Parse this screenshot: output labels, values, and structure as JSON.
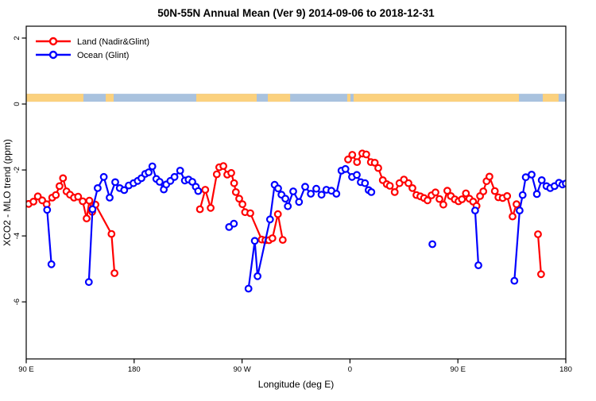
{
  "title": "50N-55N Annual Mean (Ver 9)   2014-09-06 to 2018-12-31",
  "legend": {
    "items": [
      {
        "label": "Land (Nadir&Glint)",
        "color": "#ff0000"
      },
      {
        "label": "Ocean (Glint)",
        "color": "#0000ff"
      }
    ]
  },
  "chart_data": {
    "type": "line",
    "title": "50N-55N Annual Mean (Ver 9)   2014-09-06 to 2018-12-31",
    "xlabel": "Longitude (deg E)",
    "ylabel": "XCO2 - MLO trend (ppm)",
    "xlim": [
      90,
      540
    ],
    "ylim": [
      -7.73,
      2.36
    ],
    "grid": false,
    "legend_position": "top-left",
    "x_ticks": [
      {
        "value": 90,
        "label": "90 E"
      },
      {
        "value": 180,
        "label": "180"
      },
      {
        "value": 270,
        "label": "90 W"
      },
      {
        "value": 360,
        "label": "0"
      },
      {
        "value": 450,
        "label": "90 E"
      },
      {
        "value": 540,
        "label": "180"
      }
    ],
    "y_ticks": [
      {
        "value": 2,
        "label": "2"
      },
      {
        "value": 0,
        "label": "0"
      },
      {
        "value": -2,
        "label": "-2"
      },
      {
        "value": -4,
        "label": "-4"
      },
      {
        "value": -6,
        "label": "-6"
      }
    ],
    "series": [
      {
        "name": "Land (Nadir&Glint)",
        "color": "#ff0000",
        "marker": "open-circle",
        "segments": [
          [
            [
              92,
              -3.03
            ],
            [
              96,
              -2.96
            ],
            [
              99.7,
              -2.8
            ],
            [
              103.3,
              -2.92
            ],
            [
              107,
              -3.04
            ],
            [
              111.7,
              -2.84
            ],
            [
              114.7,
              -2.76
            ],
            [
              117.8,
              -2.49
            ],
            [
              120.7,
              -2.25
            ],
            [
              123.6,
              -2.65
            ],
            [
              126.5,
              -2.75
            ],
            [
              129.8,
              -2.84
            ],
            [
              133.3,
              -2.81
            ],
            [
              137.1,
              -2.95
            ],
            [
              140.4,
              -3.47
            ],
            [
              142.7,
              -2.93
            ],
            [
              145,
              -3.27
            ],
            [
              147.7,
              -3.05
            ],
            [
              161.1,
              -3.94
            ],
            [
              163.6,
              -5.13
            ]
          ],
          [
            [
              234.9,
              -3.19
            ],
            [
              239.3,
              -2.6
            ],
            [
              243.8,
              -3.15
            ],
            [
              248.9,
              -2.13
            ],
            [
              251,
              -1.92
            ],
            [
              254.4,
              -1.88
            ],
            [
              257.7,
              -2.14
            ],
            [
              261,
              -2.09
            ],
            [
              263.4,
              -2.4
            ],
            [
              264.8,
              -2.67
            ],
            [
              267.6,
              -2.87
            ],
            [
              270.3,
              -3.04
            ],
            [
              272.5,
              -3.28
            ],
            [
              276.9,
              -3.31
            ],
            [
              286.4,
              -4.11
            ],
            [
              289.5,
              -4.13
            ],
            [
              292.4,
              -4.13
            ],
            [
              295.3,
              -4.07
            ],
            [
              299.9,
              -3.34
            ],
            [
              303.9,
              -4.12
            ]
          ],
          [
            [
              358.4,
              -1.68
            ],
            [
              361.9,
              -1.54
            ],
            [
              365.9,
              -1.76
            ],
            [
              370.3,
              -1.5
            ],
            [
              373.6,
              -1.53
            ],
            [
              377.4,
              -1.76
            ],
            [
              380.7,
              -1.78
            ],
            [
              383.6,
              -1.94
            ],
            [
              387.4,
              -2.31
            ],
            [
              390.7,
              -2.43
            ],
            [
              393.3,
              -2.48
            ],
            [
              397.3,
              -2.67
            ],
            [
              401.3,
              -2.4
            ],
            [
              405,
              -2.29
            ],
            [
              408.8,
              -2.4
            ],
            [
              412.1,
              -2.55
            ],
            [
              415.4,
              -2.76
            ],
            [
              418.7,
              -2.8
            ],
            [
              421.8,
              -2.85
            ],
            [
              424.7,
              -2.92
            ],
            [
              428,
              -2.77
            ],
            [
              431.3,
              -2.68
            ],
            [
              434.6,
              -2.88
            ],
            [
              437.9,
              -3.05
            ],
            [
              441.2,
              -2.63
            ],
            [
              444.1,
              -2.79
            ],
            [
              447.4,
              -2.89
            ],
            [
              450.5,
              -2.95
            ],
            [
              453.4,
              -2.89
            ],
            [
              456.7,
              -2.71
            ],
            [
              459.6,
              -2.87
            ],
            [
              462.7,
              -2.96
            ],
            [
              465.6,
              -3.09
            ],
            [
              468.5,
              -2.79
            ],
            [
              471.2,
              -2.65
            ],
            [
              473.9,
              -2.34
            ],
            [
              476.3,
              -2.2
            ],
            [
              480.8,
              -2.64
            ],
            [
              483.8,
              -2.83
            ],
            [
              487.4,
              -2.85
            ],
            [
              491.1,
              -2.79
            ],
            [
              495.6,
              -3.41
            ],
            [
              498.9,
              -3.04
            ]
          ],
          [
            [
              516.8,
              -3.95
            ],
            [
              519.4,
              -5.16
            ]
          ]
        ]
      },
      {
        "name": "Ocean (Glint)",
        "color": "#0000ff",
        "marker": "open-circle",
        "segments": [
          [
            [
              107.4,
              -3.21
            ],
            [
              111,
              -4.86
            ]
          ],
          [
            [
              142.2,
              -5.4
            ],
            [
              145.3,
              -3.19
            ],
            [
              149.6,
              -2.55
            ],
            [
              154.7,
              -2.21
            ],
            [
              159.6,
              -2.84
            ],
            [
              164.2,
              -2.37
            ],
            [
              168,
              -2.55
            ],
            [
              171.7,
              -2.61
            ],
            [
              175.5,
              -2.47
            ],
            [
              179.5,
              -2.4
            ],
            [
              183,
              -2.33
            ],
            [
              186.1,
              -2.25
            ],
            [
              189.2,
              -2.12
            ],
            [
              192.1,
              -2.07
            ],
            [
              195.2,
              -1.89
            ],
            [
              198.5,
              -2.27
            ],
            [
              201.3,
              -2.36
            ],
            [
              204.7,
              -2.59
            ],
            [
              206.8,
              -2.44
            ],
            [
              210.2,
              -2.33
            ],
            [
              213.7,
              -2.21
            ],
            [
              218.4,
              -2.02
            ],
            [
              222.3,
              -2.32
            ],
            [
              225.4,
              -2.29
            ],
            [
              228.5,
              -2.36
            ],
            [
              231.4,
              -2.51
            ],
            [
              233.4,
              -2.64
            ]
          ],
          [
            [
              259.2,
              -3.73
            ],
            [
              263.2,
              -3.63
            ]
          ],
          [
            [
              275.4,
              -5.6
            ],
            [
              280.6,
              -4.15
            ],
            [
              282.9,
              -5.22
            ],
            [
              293.3,
              -3.5
            ],
            [
              297.2,
              -2.45
            ],
            [
              300.1,
              -2.56
            ],
            [
              302.9,
              -2.75
            ],
            [
              306.1,
              -2.87
            ],
            [
              308.2,
              -3.1
            ],
            [
              312.7,
              -2.65
            ],
            [
              317.5,
              -2.97
            ],
            [
              322.6,
              -2.51
            ],
            [
              327.3,
              -2.72
            ],
            [
              331.9,
              -2.57
            ],
            [
              336.3,
              -2.75
            ],
            [
              340.3,
              -2.6
            ],
            [
              344.5,
              -2.63
            ],
            [
              348.7,
              -2.72
            ],
            [
              352.9,
              -2.02
            ],
            [
              356.2,
              -1.97
            ],
            [
              361.7,
              -2.21
            ],
            [
              365.7,
              -2.15
            ],
            [
              369,
              -2.37
            ],
            [
              372.5,
              -2.4
            ],
            [
              375.6,
              -2.61
            ],
            [
              377.8,
              -2.67
            ]
          ],
          [
            [
              428.7,
              -4.25
            ]
          ],
          [
            [
              464.4,
              -3.23
            ],
            [
              467.1,
              -4.89
            ]
          ],
          [
            [
              497.1,
              -5.36
            ],
            [
              501.5,
              -3.23
            ],
            [
              504,
              -2.76
            ],
            [
              506.6,
              -2.22
            ],
            [
              511.5,
              -2.14
            ],
            [
              515.9,
              -2.73
            ],
            [
              519.9,
              -2.31
            ],
            [
              523.9,
              -2.49
            ],
            [
              527,
              -2.55
            ],
            [
              530.6,
              -2.49
            ],
            [
              534.3,
              -2.39
            ],
            [
              537.2,
              -2.44
            ],
            [
              540,
              -2.41
            ]
          ]
        ]
      }
    ],
    "map_strip": {
      "description": "land/ocean band for 50N-55N latitude belt",
      "ocean_color": "#a9c2de",
      "land_color": "#fbd17e",
      "ppm_band": [
        0.07,
        0.31
      ],
      "ocean_extent": [
        90,
        540
      ],
      "land_segments": [
        [
          90,
          137.7
        ],
        [
          156.3,
          162.9
        ],
        [
          231.8,
          282.2
        ],
        [
          291.5,
          310.1
        ],
        [
          357.7,
          360.4
        ],
        [
          363,
          500.9
        ],
        [
          520.8,
          534
        ]
      ]
    }
  }
}
